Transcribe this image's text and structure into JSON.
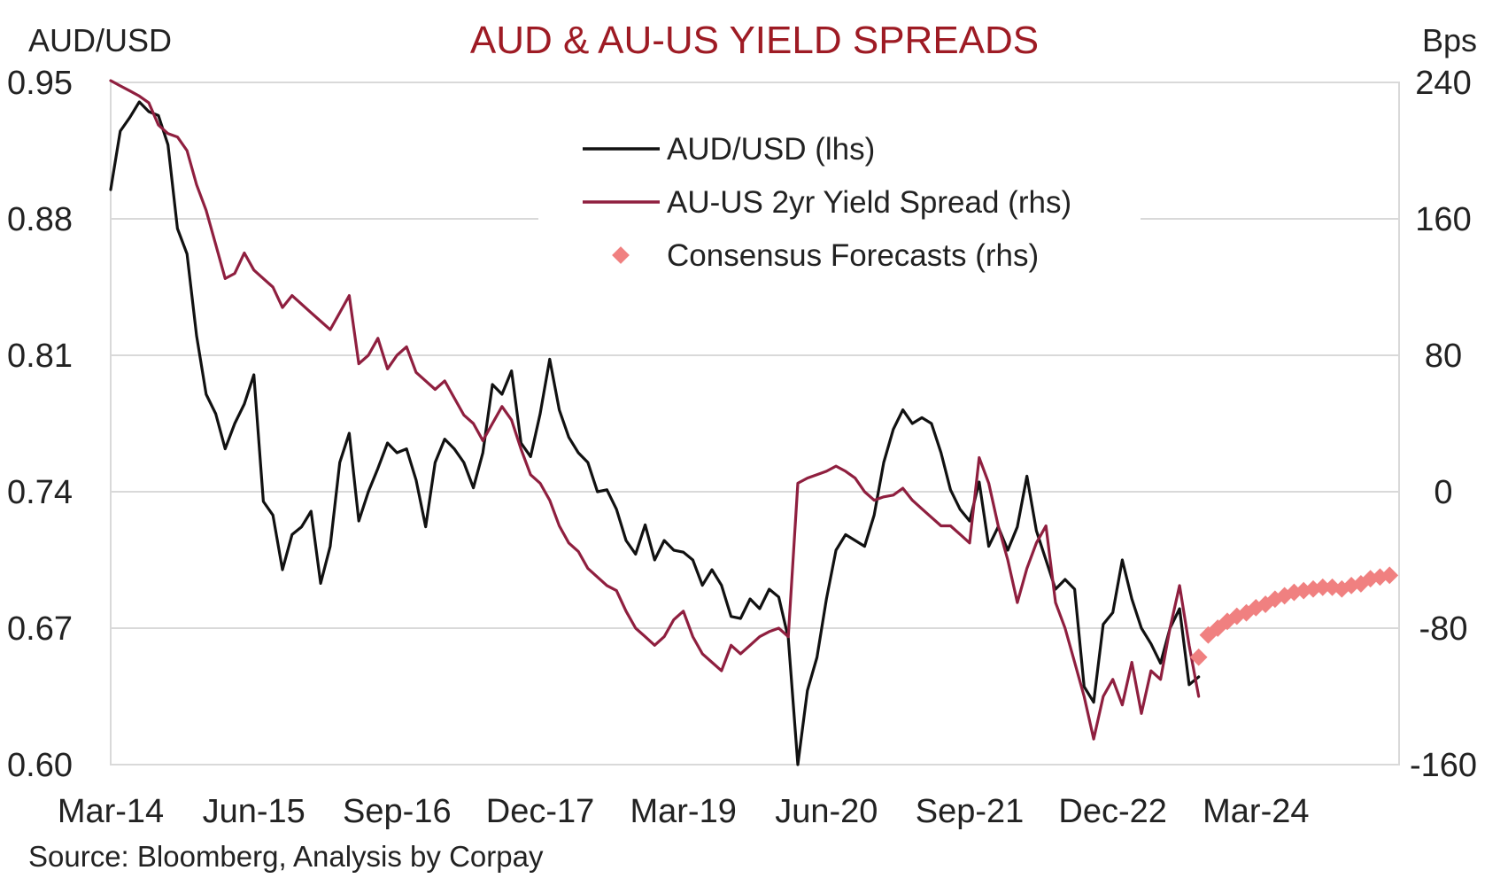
{
  "chart_data": {
    "type": "line",
    "title": "AUD & AU-US YIELD SPREADS",
    "ylabel_left": "AUD/USD",
    "ylabel_right": "Bps",
    "source": "Source: Bloomberg, Analysis by Corpay",
    "x_tick_labels": [
      "Mar-14",
      "Jun-15",
      "Sep-16",
      "Dec-17",
      "Mar-19",
      "Jun-20",
      "Sep-21",
      "Dec-22",
      "Mar-24"
    ],
    "x_tick_dates": [
      "2014-03",
      "2015-06",
      "2016-09",
      "2017-12",
      "2019-03",
      "2020-06",
      "2021-09",
      "2022-12",
      "2024-03"
    ],
    "xlim": [
      "2014-03",
      "2025-06"
    ],
    "y_left_ticks": [
      "0.95",
      "0.88",
      "0.81",
      "0.74",
      "0.67",
      "0.60"
    ],
    "y_right_ticks": [
      "240",
      "160",
      "80",
      "0",
      "-80",
      "-160"
    ],
    "ylim_left": [
      0.6,
      0.95
    ],
    "ylim_right": [
      -160,
      240
    ],
    "grid": "horizontal",
    "legend_position": "top-center",
    "series": [
      {
        "name": "AUD/USD (lhs)",
        "axis": "left",
        "color": "#111111",
        "style": "line",
        "points": [
          [
            "2014-03",
            0.895
          ],
          [
            "2014-04",
            0.925
          ],
          [
            "2014-05",
            0.932
          ],
          [
            "2014-06",
            0.94
          ],
          [
            "2014-07",
            0.935
          ],
          [
            "2014-08",
            0.933
          ],
          [
            "2014-09",
            0.918
          ],
          [
            "2014-10",
            0.875
          ],
          [
            "2014-11",
            0.862
          ],
          [
            "2014-12",
            0.82
          ],
          [
            "2015-01",
            0.79
          ],
          [
            "2015-02",
            0.78
          ],
          [
            "2015-03",
            0.762
          ],
          [
            "2015-04",
            0.775
          ],
          [
            "2015-05",
            0.785
          ],
          [
            "2015-06",
            0.8
          ],
          [
            "2015-07",
            0.735
          ],
          [
            "2015-08",
            0.728
          ],
          [
            "2015-09",
            0.7
          ],
          [
            "2015-10",
            0.718
          ],
          [
            "2015-11",
            0.722
          ],
          [
            "2015-12",
            0.73
          ],
          [
            "2016-01",
            0.693
          ],
          [
            "2016-02",
            0.712
          ],
          [
            "2016-03",
            0.755
          ],
          [
            "2016-04",
            0.77
          ],
          [
            "2016-05",
            0.725
          ],
          [
            "2016-06",
            0.74
          ],
          [
            "2016-07",
            0.752
          ],
          [
            "2016-08",
            0.765
          ],
          [
            "2016-09",
            0.76
          ],
          [
            "2016-10",
            0.762
          ],
          [
            "2016-11",
            0.746
          ],
          [
            "2016-12",
            0.722
          ],
          [
            "2017-01",
            0.755
          ],
          [
            "2017-02",
            0.767
          ],
          [
            "2017-03",
            0.762
          ],
          [
            "2017-04",
            0.755
          ],
          [
            "2017-05",
            0.742
          ],
          [
            "2017-06",
            0.76
          ],
          [
            "2017-07",
            0.795
          ],
          [
            "2017-08",
            0.79
          ],
          [
            "2017-09",
            0.802
          ],
          [
            "2017-10",
            0.765
          ],
          [
            "2017-11",
            0.758
          ],
          [
            "2017-12",
            0.78
          ],
          [
            "2018-01",
            0.808
          ],
          [
            "2018-02",
            0.782
          ],
          [
            "2018-03",
            0.768
          ],
          [
            "2018-04",
            0.76
          ],
          [
            "2018-05",
            0.755
          ],
          [
            "2018-06",
            0.74
          ],
          [
            "2018-07",
            0.741
          ],
          [
            "2018-08",
            0.731
          ],
          [
            "2018-09",
            0.715
          ],
          [
            "2018-10",
            0.708
          ],
          [
            "2018-11",
            0.723
          ],
          [
            "2018-12",
            0.705
          ],
          [
            "2019-01",
            0.715
          ],
          [
            "2019-02",
            0.71
          ],
          [
            "2019-03",
            0.709
          ],
          [
            "2019-04",
            0.705
          ],
          [
            "2019-05",
            0.692
          ],
          [
            "2019-06",
            0.7
          ],
          [
            "2019-07",
            0.692
          ],
          [
            "2019-08",
            0.676
          ],
          [
            "2019-09",
            0.675
          ],
          [
            "2019-10",
            0.685
          ],
          [
            "2019-11",
            0.68
          ],
          [
            "2019-12",
            0.69
          ],
          [
            "2020-01",
            0.686
          ],
          [
            "2020-02",
            0.665
          ],
          [
            "2020-03",
            0.6
          ],
          [
            "2020-04",
            0.638
          ],
          [
            "2020-05",
            0.655
          ],
          [
            "2020-06",
            0.685
          ],
          [
            "2020-07",
            0.71
          ],
          [
            "2020-08",
            0.718
          ],
          [
            "2020-09",
            0.715
          ],
          [
            "2020-10",
            0.712
          ],
          [
            "2020-11",
            0.728
          ],
          [
            "2020-12",
            0.755
          ],
          [
            "2021-01",
            0.772
          ],
          [
            "2021-02",
            0.782
          ],
          [
            "2021-03",
            0.775
          ],
          [
            "2021-04",
            0.778
          ],
          [
            "2021-05",
            0.775
          ],
          [
            "2021-06",
            0.76
          ],
          [
            "2021-07",
            0.741
          ],
          [
            "2021-08",
            0.731
          ],
          [
            "2021-09",
            0.725
          ],
          [
            "2021-10",
            0.745
          ],
          [
            "2021-11",
            0.712
          ],
          [
            "2021-12",
            0.722
          ],
          [
            "2022-01",
            0.71
          ],
          [
            "2022-02",
            0.722
          ],
          [
            "2022-03",
            0.748
          ],
          [
            "2022-04",
            0.72
          ],
          [
            "2022-05",
            0.705
          ],
          [
            "2022-06",
            0.69
          ],
          [
            "2022-07",
            0.695
          ],
          [
            "2022-08",
            0.69
          ],
          [
            "2022-09",
            0.64
          ],
          [
            "2022-10",
            0.632
          ],
          [
            "2022-11",
            0.672
          ],
          [
            "2022-12",
            0.678
          ],
          [
            "2023-01",
            0.705
          ],
          [
            "2023-02",
            0.685
          ],
          [
            "2023-03",
            0.67
          ],
          [
            "2023-04",
            0.662
          ],
          [
            "2023-05",
            0.652
          ],
          [
            "2023-06",
            0.67
          ],
          [
            "2023-07",
            0.68
          ],
          [
            "2023-08",
            0.641
          ],
          [
            "2023-09",
            0.645
          ]
        ]
      },
      {
        "name": "AU-US 2yr Yield Spread (rhs)",
        "axis": "right",
        "color": "#8f1f3f",
        "style": "line",
        "points": [
          [
            "2014-03",
            245
          ],
          [
            "2014-04",
            238
          ],
          [
            "2014-05",
            235
          ],
          [
            "2014-06",
            232
          ],
          [
            "2014-07",
            228
          ],
          [
            "2014-08",
            215
          ],
          [
            "2014-09",
            210
          ],
          [
            "2014-10",
            208
          ],
          [
            "2014-11",
            200
          ],
          [
            "2014-12",
            180
          ],
          [
            "2015-01",
            165
          ],
          [
            "2015-02",
            145
          ],
          [
            "2015-03",
            125
          ],
          [
            "2015-04",
            128
          ],
          [
            "2015-05",
            140
          ],
          [
            "2015-06",
            130
          ],
          [
            "2015-07",
            125
          ],
          [
            "2015-08",
            120
          ],
          [
            "2015-09",
            108
          ],
          [
            "2015-10",
            115
          ],
          [
            "2015-11",
            110
          ],
          [
            "2015-12",
            105
          ],
          [
            "2016-01",
            100
          ],
          [
            "2016-02",
            95
          ],
          [
            "2016-03",
            105
          ],
          [
            "2016-04",
            115
          ],
          [
            "2016-05",
            75
          ],
          [
            "2016-06",
            80
          ],
          [
            "2016-07",
            90
          ],
          [
            "2016-08",
            72
          ],
          [
            "2016-09",
            80
          ],
          [
            "2016-10",
            85
          ],
          [
            "2016-11",
            70
          ],
          [
            "2016-12",
            65
          ],
          [
            "2017-01",
            60
          ],
          [
            "2017-02",
            65
          ],
          [
            "2017-03",
            55
          ],
          [
            "2017-04",
            45
          ],
          [
            "2017-05",
            40
          ],
          [
            "2017-06",
            30
          ],
          [
            "2017-07",
            40
          ],
          [
            "2017-08",
            50
          ],
          [
            "2017-09",
            42
          ],
          [
            "2017-10",
            25
          ],
          [
            "2017-11",
            10
          ],
          [
            "2017-12",
            5
          ],
          [
            "2018-01",
            -5
          ],
          [
            "2018-02",
            -20
          ],
          [
            "2018-03",
            -30
          ],
          [
            "2018-04",
            -35
          ],
          [
            "2018-05",
            -45
          ],
          [
            "2018-06",
            -50
          ],
          [
            "2018-07",
            -55
          ],
          [
            "2018-08",
            -58
          ],
          [
            "2018-09",
            -70
          ],
          [
            "2018-10",
            -80
          ],
          [
            "2018-11",
            -85
          ],
          [
            "2018-12",
            -90
          ],
          [
            "2019-01",
            -85
          ],
          [
            "2019-02",
            -75
          ],
          [
            "2019-03",
            -70
          ],
          [
            "2019-04",
            -85
          ],
          [
            "2019-05",
            -95
          ],
          [
            "2019-06",
            -100
          ],
          [
            "2019-07",
            -105
          ],
          [
            "2019-08",
            -90
          ],
          [
            "2019-09",
            -95
          ],
          [
            "2019-10",
            -90
          ],
          [
            "2019-11",
            -85
          ],
          [
            "2019-12",
            -82
          ],
          [
            "2020-01",
            -80
          ],
          [
            "2020-02",
            -85
          ],
          [
            "2020-03",
            5
          ],
          [
            "2020-04",
            8
          ],
          [
            "2020-05",
            10
          ],
          [
            "2020-06",
            12
          ],
          [
            "2020-07",
            15
          ],
          [
            "2020-08",
            12
          ],
          [
            "2020-09",
            8
          ],
          [
            "2020-10",
            0
          ],
          [
            "2020-11",
            -5
          ],
          [
            "2020-12",
            -3
          ],
          [
            "2021-01",
            -2
          ],
          [
            "2021-02",
            2
          ],
          [
            "2021-03",
            -5
          ],
          [
            "2021-04",
            -10
          ],
          [
            "2021-05",
            -15
          ],
          [
            "2021-06",
            -20
          ],
          [
            "2021-07",
            -20
          ],
          [
            "2021-08",
            -25
          ],
          [
            "2021-09",
            -30
          ],
          [
            "2021-10",
            20
          ],
          [
            "2021-11",
            5
          ],
          [
            "2021-12",
            -20
          ],
          [
            "2022-01",
            -40
          ],
          [
            "2022-02",
            -65
          ],
          [
            "2022-03",
            -45
          ],
          [
            "2022-04",
            -30
          ],
          [
            "2022-05",
            -20
          ],
          [
            "2022-06",
            -65
          ],
          [
            "2022-07",
            -80
          ],
          [
            "2022-08",
            -100
          ],
          [
            "2022-09",
            -120
          ],
          [
            "2022-10",
            -145
          ],
          [
            "2022-11",
            -120
          ],
          [
            "2022-12",
            -110
          ],
          [
            "2023-01",
            -125
          ],
          [
            "2023-02",
            -100
          ],
          [
            "2023-03",
            -130
          ],
          [
            "2023-04",
            -105
          ],
          [
            "2023-05",
            -110
          ],
          [
            "2023-06",
            -80
          ],
          [
            "2023-07",
            -55
          ],
          [
            "2023-08",
            -90
          ],
          [
            "2023-09",
            -120
          ]
        ]
      },
      {
        "name": "Consensus Forecasts (rhs)",
        "axis": "right",
        "color": "#f08080",
        "style": "markers",
        "points": [
          [
            "2023-09",
            -97
          ],
          [
            "2023-10",
            -84
          ],
          [
            "2023-11",
            -80
          ],
          [
            "2023-12",
            -76
          ],
          [
            "2024-01",
            -73
          ],
          [
            "2024-02",
            -71
          ],
          [
            "2024-03",
            -68
          ],
          [
            "2024-04",
            -66
          ],
          [
            "2024-05",
            -63
          ],
          [
            "2024-06",
            -61
          ],
          [
            "2024-07",
            -59
          ],
          [
            "2024-08",
            -58
          ],
          [
            "2024-09",
            -57
          ],
          [
            "2024-10",
            -56
          ],
          [
            "2024-11",
            -56
          ],
          [
            "2024-12",
            -57
          ],
          [
            "2025-01",
            -55
          ],
          [
            "2025-02",
            -54
          ],
          [
            "2025-03",
            -51
          ],
          [
            "2025-04",
            -50
          ],
          [
            "2025-05",
            -49
          ]
        ]
      }
    ]
  }
}
